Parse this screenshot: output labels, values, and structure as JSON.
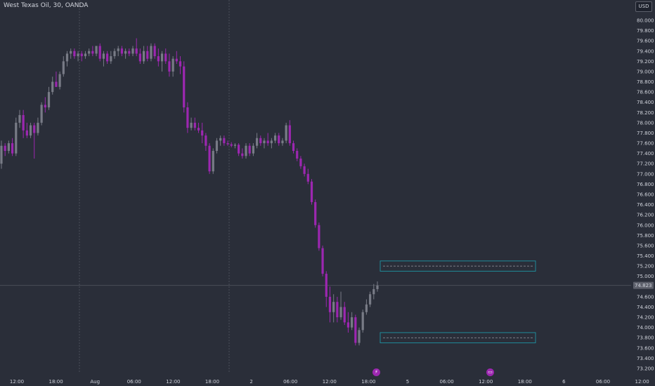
{
  "header": {
    "title": "West Texas Oil, 30, OANDA",
    "currency": "USD"
  },
  "colors": {
    "background": "#2a2e39",
    "grid_line": "#4a4e59",
    "bear_candle": "#9c27b0",
    "bull_candle": "#787b86",
    "zone_border": "#1f8a99",
    "text": "#d1d4dc"
  },
  "price_axis": {
    "ticks": [
      "80.000",
      "79.800",
      "79.600",
      "79.400",
      "79.200",
      "79.000",
      "78.800",
      "78.600",
      "78.400",
      "78.200",
      "78.000",
      "77.800",
      "77.600",
      "77.400",
      "77.200",
      "77.000",
      "76.800",
      "76.600",
      "76.400",
      "76.200",
      "76.000",
      "75.800",
      "75.600",
      "75.400",
      "75.200",
      "75.000",
      "74.800",
      "74.600",
      "74.400",
      "74.200",
      "74.000",
      "73.800",
      "73.600",
      "73.400",
      "73.200"
    ],
    "current_price": "74.823"
  },
  "time_axis": {
    "labels": [
      "12:00",
      "18:00",
      "Aug",
      "06:00",
      "12:00",
      "18:00",
      "2",
      "06:00",
      "12:00",
      "18:00",
      "5",
      "06:00",
      "12:00",
      "18:00",
      "6",
      "06:00",
      "12:00"
    ]
  },
  "markers": {
    "lightning": "⚡",
    "calendar": "▭"
  },
  "chart_data": {
    "type": "candlestick",
    "title": "West Texas Oil, 30, OANDA",
    "ylim": [
      73.1,
      80.2
    ],
    "zones": [
      {
        "top": 75.3,
        "bottom": 75.1
      },
      {
        "top": 73.9,
        "bottom": 73.7
      }
    ],
    "candles": [
      {
        "o": 77.2,
        "h": 77.65,
        "l": 77.1,
        "c": 77.55
      },
      {
        "o": 77.55,
        "h": 77.6,
        "l": 77.35,
        "c": 77.45
      },
      {
        "o": 77.45,
        "h": 77.65,
        "l": 77.4,
        "c": 77.6
      },
      {
        "o": 77.6,
        "h": 77.7,
        "l": 77.35,
        "c": 77.4
      },
      {
        "o": 77.4,
        "h": 78.1,
        "l": 77.35,
        "c": 78.0
      },
      {
        "o": 78.0,
        "h": 78.25,
        "l": 77.9,
        "c": 78.15
      },
      {
        "o": 78.15,
        "h": 78.25,
        "l": 77.7,
        "c": 77.85
      },
      {
        "o": 77.85,
        "h": 78.0,
        "l": 77.7,
        "c": 77.75
      },
      {
        "o": 77.75,
        "h": 78.0,
        "l": 77.7,
        "c": 77.95
      },
      {
        "o": 77.95,
        "h": 78.0,
        "l": 77.3,
        "c": 77.8
      },
      {
        "o": 77.8,
        "h": 78.1,
        "l": 77.75,
        "c": 78.0
      },
      {
        "o": 78.0,
        "h": 78.4,
        "l": 77.95,
        "c": 78.35
      },
      {
        "o": 78.35,
        "h": 78.5,
        "l": 78.2,
        "c": 78.3
      },
      {
        "o": 78.3,
        "h": 78.7,
        "l": 78.25,
        "c": 78.6
      },
      {
        "o": 78.6,
        "h": 78.9,
        "l": 78.55,
        "c": 78.8
      },
      {
        "o": 78.8,
        "h": 79.0,
        "l": 78.7,
        "c": 78.7
      },
      {
        "o": 78.7,
        "h": 79.0,
        "l": 78.65,
        "c": 78.95
      },
      {
        "o": 78.95,
        "h": 79.3,
        "l": 78.9,
        "c": 79.2
      },
      {
        "o": 79.2,
        "h": 79.4,
        "l": 79.1,
        "c": 79.35
      },
      {
        "o": 79.35,
        "h": 79.45,
        "l": 79.25,
        "c": 79.4
      },
      {
        "o": 79.4,
        "h": 79.45,
        "l": 79.25,
        "c": 79.3
      },
      {
        "o": 79.3,
        "h": 79.4,
        "l": 79.2,
        "c": 79.35
      },
      {
        "o": 79.35,
        "h": 79.4,
        "l": 79.2,
        "c": 79.3
      },
      {
        "o": 79.3,
        "h": 79.4,
        "l": 79.25,
        "c": 79.35
      },
      {
        "o": 79.35,
        "h": 79.45,
        "l": 79.3,
        "c": 79.4
      },
      {
        "o": 79.4,
        "h": 79.5,
        "l": 79.3,
        "c": 79.35
      },
      {
        "o": 79.35,
        "h": 79.5,
        "l": 79.3,
        "c": 79.5
      },
      {
        "o": 79.5,
        "h": 79.55,
        "l": 79.2,
        "c": 79.25
      },
      {
        "o": 79.25,
        "h": 79.4,
        "l": 79.1,
        "c": 79.35
      },
      {
        "o": 79.35,
        "h": 79.4,
        "l": 79.15,
        "c": 79.2
      },
      {
        "o": 79.2,
        "h": 79.4,
        "l": 79.15,
        "c": 79.3
      },
      {
        "o": 79.3,
        "h": 79.45,
        "l": 79.25,
        "c": 79.4
      },
      {
        "o": 79.4,
        "h": 79.5,
        "l": 79.3,
        "c": 79.45
      },
      {
        "o": 79.45,
        "h": 79.5,
        "l": 79.3,
        "c": 79.35
      },
      {
        "o": 79.35,
        "h": 79.45,
        "l": 79.25,
        "c": 79.4
      },
      {
        "o": 79.4,
        "h": 79.45,
        "l": 79.3,
        "c": 79.35
      },
      {
        "o": 79.35,
        "h": 79.5,
        "l": 79.3,
        "c": 79.45
      },
      {
        "o": 79.45,
        "h": 79.65,
        "l": 79.3,
        "c": 79.35
      },
      {
        "o": 79.35,
        "h": 79.45,
        "l": 79.15,
        "c": 79.2
      },
      {
        "o": 79.2,
        "h": 79.5,
        "l": 79.15,
        "c": 79.4
      },
      {
        "o": 79.4,
        "h": 79.5,
        "l": 79.2,
        "c": 79.25
      },
      {
        "o": 79.25,
        "h": 79.55,
        "l": 79.2,
        "c": 79.5
      },
      {
        "o": 79.5,
        "h": 79.55,
        "l": 79.25,
        "c": 79.3
      },
      {
        "o": 79.3,
        "h": 79.45,
        "l": 79.1,
        "c": 79.2
      },
      {
        "o": 79.2,
        "h": 79.4,
        "l": 79.0,
        "c": 79.35
      },
      {
        "o": 79.35,
        "h": 79.45,
        "l": 79.15,
        "c": 79.2
      },
      {
        "o": 79.2,
        "h": 79.35,
        "l": 78.9,
        "c": 79.0
      },
      {
        "o": 79.0,
        "h": 79.3,
        "l": 78.9,
        "c": 79.25
      },
      {
        "o": 79.25,
        "h": 79.4,
        "l": 79.15,
        "c": 79.2
      },
      {
        "o": 79.2,
        "h": 79.3,
        "l": 78.95,
        "c": 79.1
      },
      {
        "o": 79.1,
        "h": 79.2,
        "l": 78.2,
        "c": 78.3
      },
      {
        "o": 78.3,
        "h": 78.4,
        "l": 77.8,
        "c": 77.9
      },
      {
        "o": 77.9,
        "h": 78.1,
        "l": 77.85,
        "c": 78.0
      },
      {
        "o": 78.0,
        "h": 78.1,
        "l": 77.85,
        "c": 77.9
      },
      {
        "o": 77.9,
        "h": 78.0,
        "l": 77.8,
        "c": 77.85
      },
      {
        "o": 77.85,
        "h": 78.0,
        "l": 77.6,
        "c": 77.75
      },
      {
        "o": 77.75,
        "h": 77.8,
        "l": 77.45,
        "c": 77.55
      },
      {
        "o": 77.55,
        "h": 77.6,
        "l": 77.0,
        "c": 77.05
      },
      {
        "o": 77.05,
        "h": 77.5,
        "l": 77.0,
        "c": 77.45
      },
      {
        "o": 77.45,
        "h": 77.7,
        "l": 77.4,
        "c": 77.65
      },
      {
        "o": 77.65,
        "h": 77.75,
        "l": 77.55,
        "c": 77.7
      },
      {
        "o": 77.7,
        "h": 77.75,
        "l": 77.55,
        "c": 77.6
      },
      {
        "o": 77.6,
        "h": 77.65,
        "l": 77.55,
        "c": 77.58
      },
      {
        "o": 77.58,
        "h": 77.62,
        "l": 77.52,
        "c": 77.55
      },
      {
        "o": 77.55,
        "h": 77.6,
        "l": 77.5,
        "c": 77.57
      },
      {
        "o": 77.57,
        "h": 77.6,
        "l": 77.35,
        "c": 77.4
      },
      {
        "o": 77.4,
        "h": 77.5,
        "l": 77.3,
        "c": 77.35
      },
      {
        "o": 77.35,
        "h": 77.6,
        "l": 77.3,
        "c": 77.55
      },
      {
        "o": 77.55,
        "h": 77.6,
        "l": 77.35,
        "c": 77.4
      },
      {
        "o": 77.4,
        "h": 77.6,
        "l": 77.35,
        "c": 77.55
      },
      {
        "o": 77.55,
        "h": 77.8,
        "l": 77.5,
        "c": 77.7
      },
      {
        "o": 77.7,
        "h": 77.75,
        "l": 77.55,
        "c": 77.6
      },
      {
        "o": 77.6,
        "h": 77.7,
        "l": 77.5,
        "c": 77.65
      },
      {
        "o": 77.65,
        "h": 77.8,
        "l": 77.55,
        "c": 77.6
      },
      {
        "o": 77.6,
        "h": 77.7,
        "l": 77.5,
        "c": 77.65
      },
      {
        "o": 77.65,
        "h": 77.8,
        "l": 77.6,
        "c": 77.75
      },
      {
        "o": 77.75,
        "h": 77.8,
        "l": 77.55,
        "c": 77.6
      },
      {
        "o": 77.6,
        "h": 77.7,
        "l": 77.55,
        "c": 77.65
      },
      {
        "o": 77.65,
        "h": 78.0,
        "l": 77.6,
        "c": 77.95
      },
      {
        "o": 77.95,
        "h": 78.05,
        "l": 77.55,
        "c": 77.6
      },
      {
        "o": 77.6,
        "h": 77.65,
        "l": 77.4,
        "c": 77.45
      },
      {
        "o": 77.45,
        "h": 77.5,
        "l": 77.25,
        "c": 77.3
      },
      {
        "o": 77.3,
        "h": 77.35,
        "l": 77.1,
        "c": 77.15
      },
      {
        "o": 77.15,
        "h": 77.2,
        "l": 76.95,
        "c": 77.0
      },
      {
        "o": 77.0,
        "h": 77.1,
        "l": 76.8,
        "c": 76.85
      },
      {
        "o": 76.85,
        "h": 76.9,
        "l": 76.4,
        "c": 76.45
      },
      {
        "o": 76.45,
        "h": 76.5,
        "l": 75.95,
        "c": 76.0
      },
      {
        "o": 76.0,
        "h": 76.05,
        "l": 75.5,
        "c": 75.55
      },
      {
        "o": 75.55,
        "h": 75.6,
        "l": 75.0,
        "c": 75.05
      },
      {
        "o": 75.05,
        "h": 75.1,
        "l": 74.4,
        "c": 74.6
      },
      {
        "o": 74.6,
        "h": 74.8,
        "l": 74.1,
        "c": 74.3
      },
      {
        "o": 74.3,
        "h": 74.65,
        "l": 74.1,
        "c": 74.5
      },
      {
        "o": 74.5,
        "h": 74.6,
        "l": 74.1,
        "c": 74.2
      },
      {
        "o": 74.2,
        "h": 74.7,
        "l": 74.15,
        "c": 74.4
      },
      {
        "o": 74.4,
        "h": 74.5,
        "l": 74.05,
        "c": 74.1
      },
      {
        "o": 74.1,
        "h": 74.3,
        "l": 73.9,
        "c": 74.0
      },
      {
        "o": 74.0,
        "h": 74.3,
        "l": 73.95,
        "c": 74.2
      },
      {
        "o": 74.2,
        "h": 74.25,
        "l": 73.65,
        "c": 73.7
      },
      {
        "o": 73.7,
        "h": 74.0,
        "l": 73.65,
        "c": 73.95
      },
      {
        "o": 73.95,
        "h": 74.35,
        "l": 73.9,
        "c": 74.3
      },
      {
        "o": 74.3,
        "h": 74.55,
        "l": 74.25,
        "c": 74.45
      },
      {
        "o": 74.45,
        "h": 74.7,
        "l": 74.4,
        "c": 74.65
      },
      {
        "o": 74.65,
        "h": 74.85,
        "l": 74.55,
        "c": 74.75
      },
      {
        "o": 74.75,
        "h": 74.9,
        "l": 74.7,
        "c": 74.82
      }
    ]
  }
}
